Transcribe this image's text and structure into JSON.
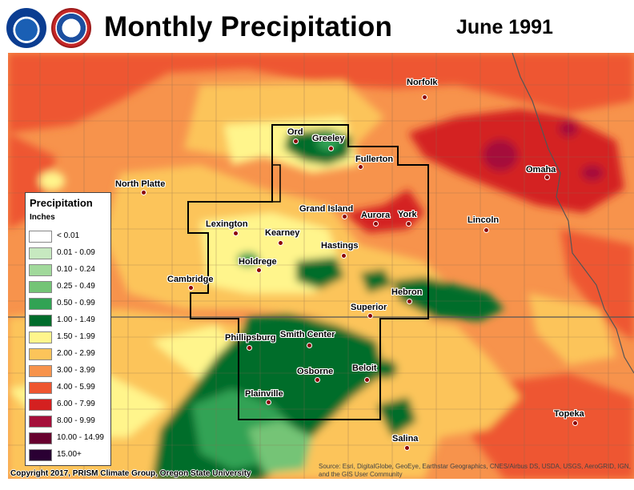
{
  "header": {
    "logo_left": "noaa-logo",
    "logo_right": "nws-logo",
    "title": "Monthly Precipitation",
    "date": "June 1991"
  },
  "map": {
    "basemap_region": "Nebraska / Kansas",
    "outline_color": "#000000",
    "cities": [
      {
        "name": "Norfolk"
      },
      {
        "name": "Ord"
      },
      {
        "name": "Greeley"
      },
      {
        "name": "Fullerton"
      },
      {
        "name": "Omaha"
      },
      {
        "name": "North Platte"
      },
      {
        "name": "Grand Island"
      },
      {
        "name": "Aurora"
      },
      {
        "name": "York"
      },
      {
        "name": "Lincoln"
      },
      {
        "name": "Lexington"
      },
      {
        "name": "Kearney"
      },
      {
        "name": "Hastings"
      },
      {
        "name": "Holdrege"
      },
      {
        "name": "Cambridge"
      },
      {
        "name": "Hebron"
      },
      {
        "name": "Superior"
      },
      {
        "name": "Phillipsburg"
      },
      {
        "name": "Smith Center"
      },
      {
        "name": "Beloit"
      },
      {
        "name": "Osborne"
      },
      {
        "name": "Plainville"
      },
      {
        "name": "Topeka"
      },
      {
        "name": "Salina"
      }
    ]
  },
  "legend": {
    "title": "Precipitation",
    "units": "Inches",
    "items": [
      {
        "label": "< 0.01",
        "color": "#ffffff"
      },
      {
        "label": "0.01 - 0.09",
        "color": "#c7e9c0"
      },
      {
        "label": "0.10 - 0.24",
        "color": "#a1d99b"
      },
      {
        "label": "0.25 - 0.49",
        "color": "#74c476"
      },
      {
        "label": "0.50 - 0.99",
        "color": "#31a354"
      },
      {
        "label": "1.00 - 1.49",
        "color": "#006d2c"
      },
      {
        "label": "1.50 - 1.99",
        "color": "#fff58c"
      },
      {
        "label": "2.00 - 2.99",
        "color": "#fcc45a"
      },
      {
        "label": "3.00 - 3.99",
        "color": "#f7934c"
      },
      {
        "label": "4.00 - 5.99",
        "color": "#ee5630"
      },
      {
        "label": "6.00 - 7.99",
        "color": "#d42020"
      },
      {
        "label": "8.00 - 9.99",
        "color": "#a50f3a"
      },
      {
        "label": "10.00 - 14.99",
        "color": "#67002e"
      },
      {
        "label": "15.00+",
        "color": "#2a0033"
      }
    ]
  },
  "footer": {
    "copyright": "Copyright 2017, PRISM Climate Group, Oregon State University",
    "attribution": "Source: Esri, DigitalGlobe, GeoEye, Earthstar Geographics, CNES/Airbus DS, USDA, USGS, AeroGRID, IGN, and the GIS User Community"
  }
}
